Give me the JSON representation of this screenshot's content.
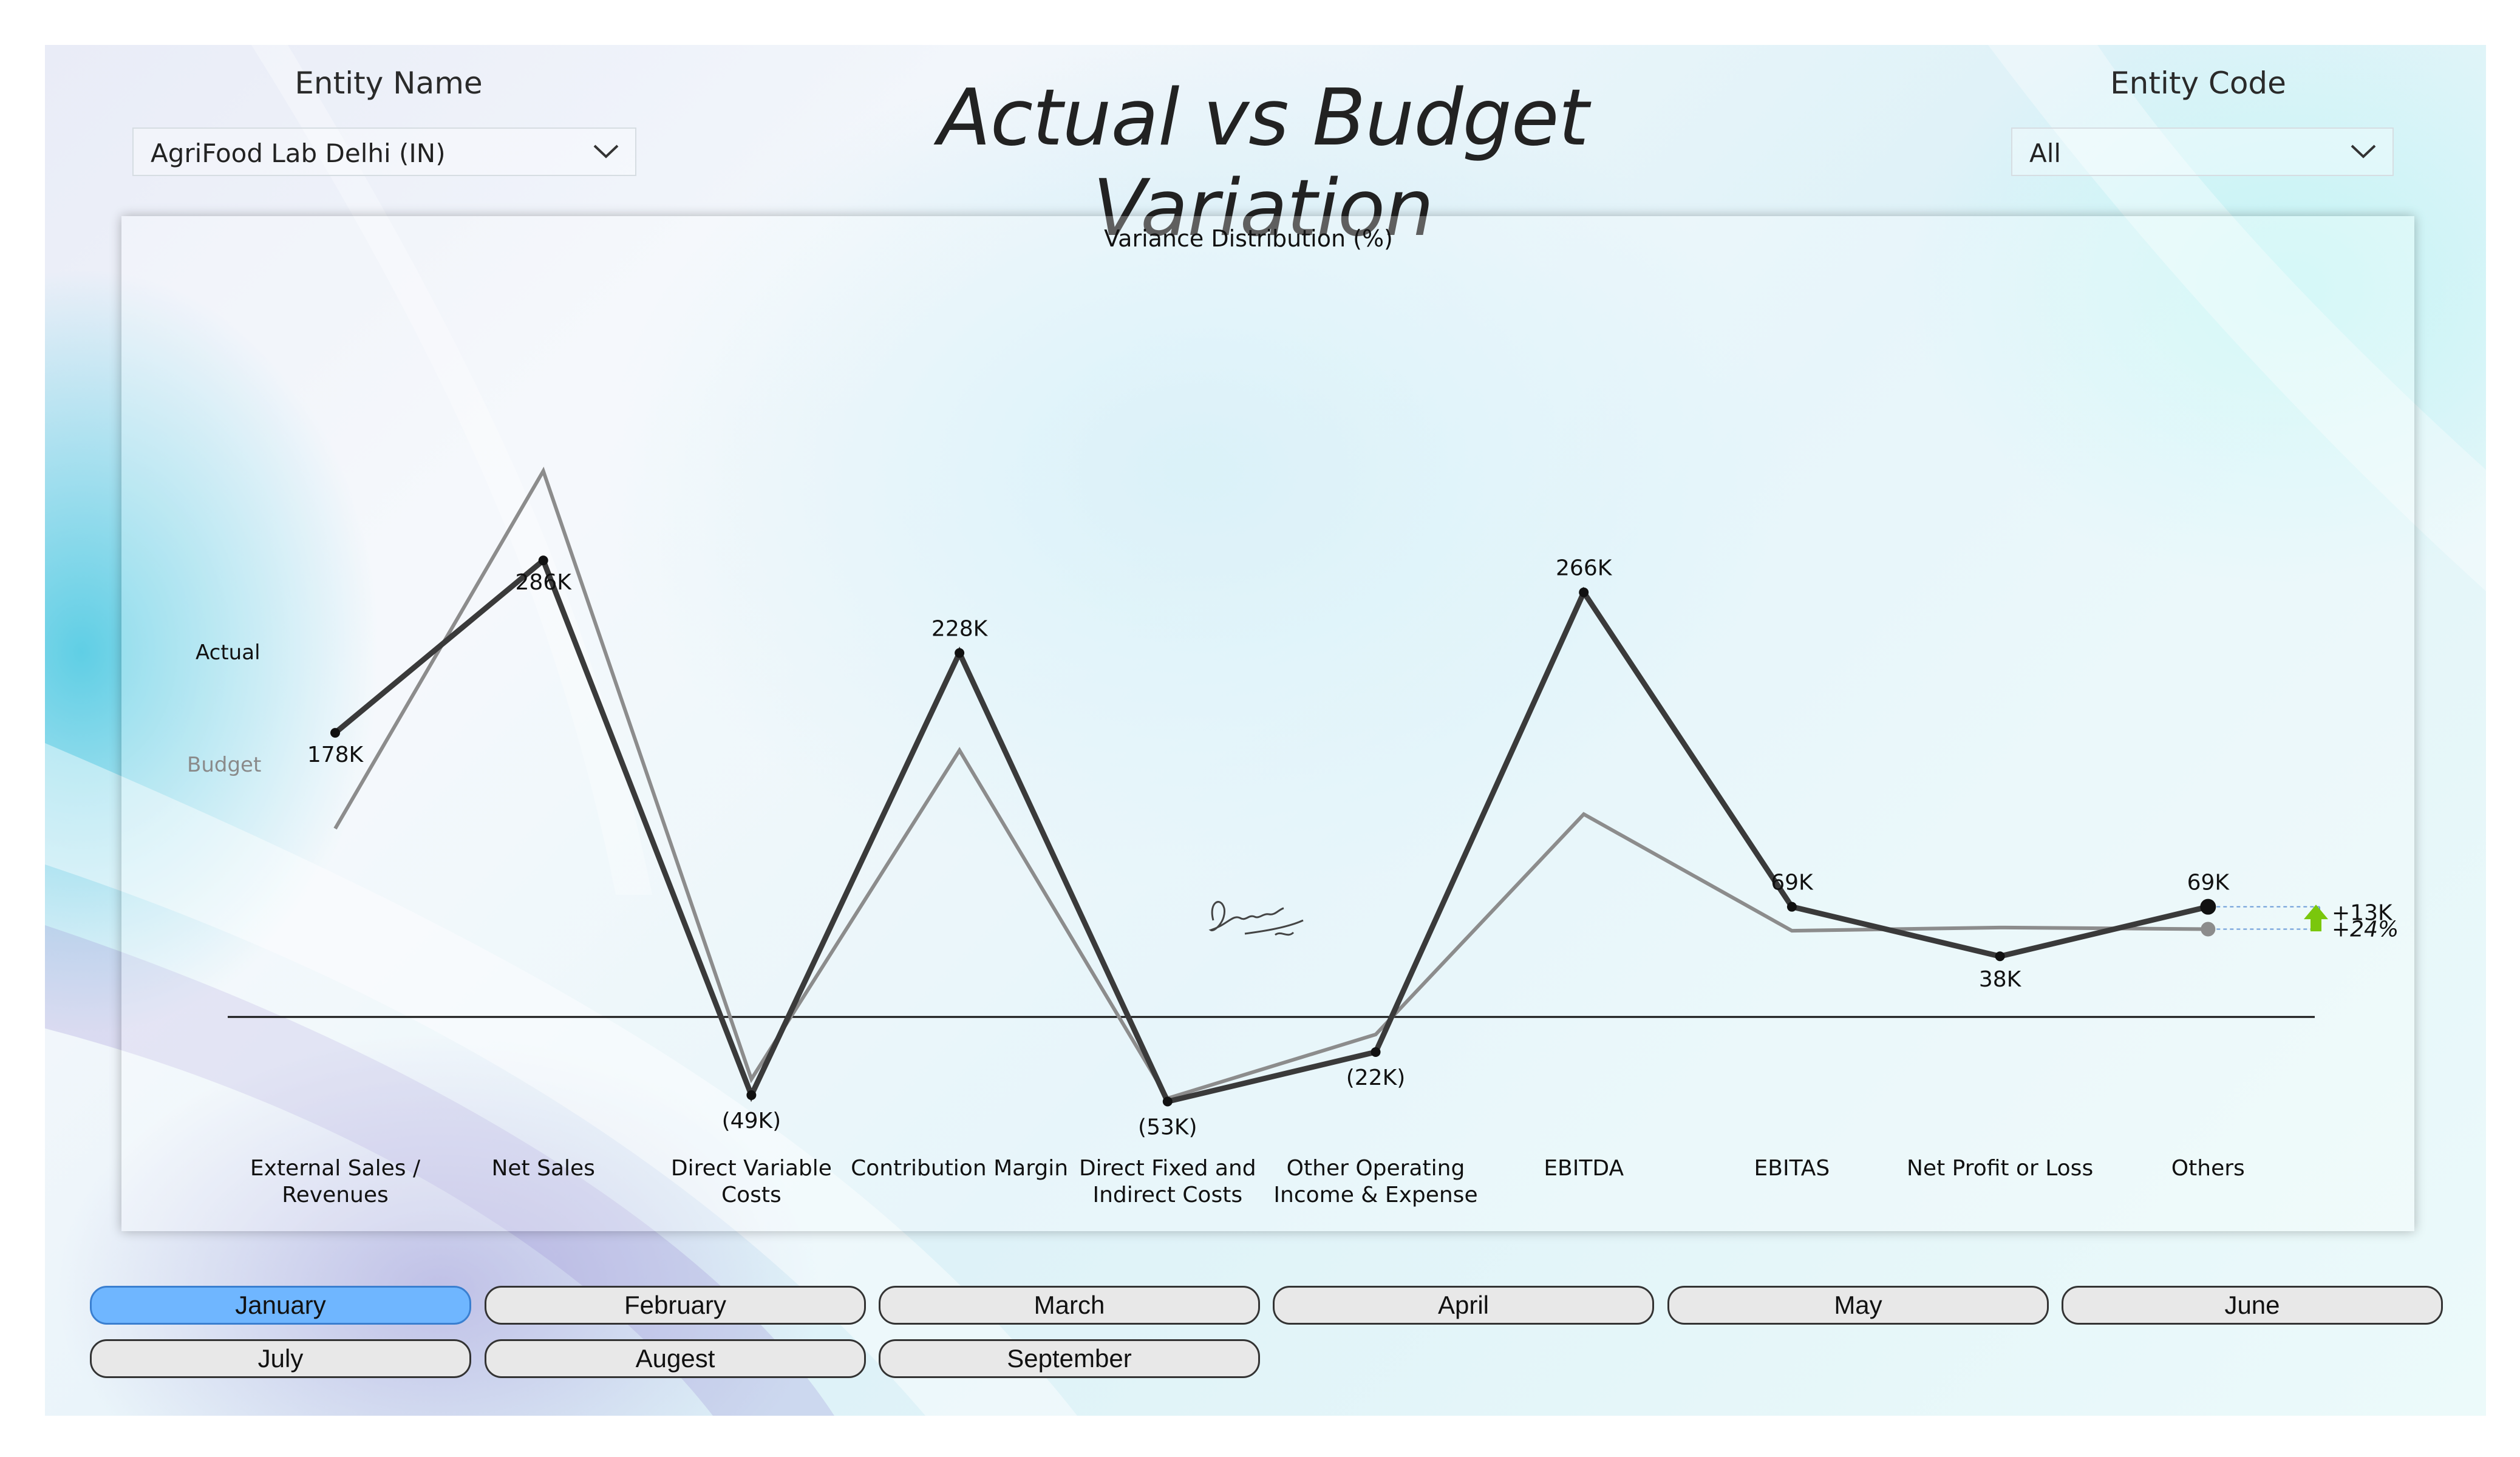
{
  "header": {
    "title": "Actual vs Budget Variation",
    "entity_name_label": "Entity Name",
    "entity_name_value": "AgriFood Lab Delhi (IN)",
    "entity_code_label": "Entity Code",
    "entity_code_value": "All"
  },
  "months": [
    {
      "label": "January",
      "selected": true
    },
    {
      "label": "February",
      "selected": false
    },
    {
      "label": "March",
      "selected": false
    },
    {
      "label": "April",
      "selected": false
    },
    {
      "label": "May",
      "selected": false
    },
    {
      "label": "June",
      "selected": false
    },
    {
      "label": "July",
      "selected": false
    },
    {
      "label": "Augest",
      "selected": false
    },
    {
      "label": "September",
      "selected": false
    }
  ],
  "colors": {
    "actual": "#3a3a3a",
    "budget": "#8c8c8c",
    "active_month": "#6fb6ff",
    "variance_arrow": "#7ac70c"
  },
  "chart_data": {
    "type": "line",
    "title": "Variance Distribution (%)",
    "categories": [
      "External Sales / Revenues",
      "Net Sales",
      "Direct Variable Costs",
      "Contribution Margin",
      "Direct Fixed and Indirect Costs",
      "Other Operating Income & Expense",
      "EBITDA",
      "EBITAS",
      "Net Profit or Loss",
      "Others"
    ],
    "category_lines": [
      [
        "External Sales /",
        "Revenues"
      ],
      [
        "Net Sales"
      ],
      [
        "Direct Variable",
        "Costs"
      ],
      [
        "Contribution Margin"
      ],
      [
        "Direct Fixed and",
        "Indirect Costs"
      ],
      [
        "Other Operating",
        "Income & Expense"
      ],
      [
        "EBITDA"
      ],
      [
        "EBITAS"
      ],
      [
        "Net Profit or Loss"
      ],
      [
        "Others"
      ]
    ],
    "series": [
      {
        "name": "Actual",
        "values": [
          178,
          286,
          -49,
          228,
          -53,
          -22,
          266,
          69,
          38,
          69
        ],
        "labels": [
          "178K",
          "286K",
          "(49K)",
          "228K",
          "(53K)",
          "(22K)",
          "266K",
          "69K",
          "38K",
          "69K"
        ]
      },
      {
        "name": "Budget",
        "values": [
          118,
          342,
          -39,
          167,
          -51,
          -11,
          127,
          54,
          56,
          55
        ]
      }
    ],
    "ylim": [
      -65,
      380
    ],
    "variance": {
      "abs": "+13K",
      "pct": "+24%"
    },
    "grid": false,
    "legend": "left, inline"
  }
}
